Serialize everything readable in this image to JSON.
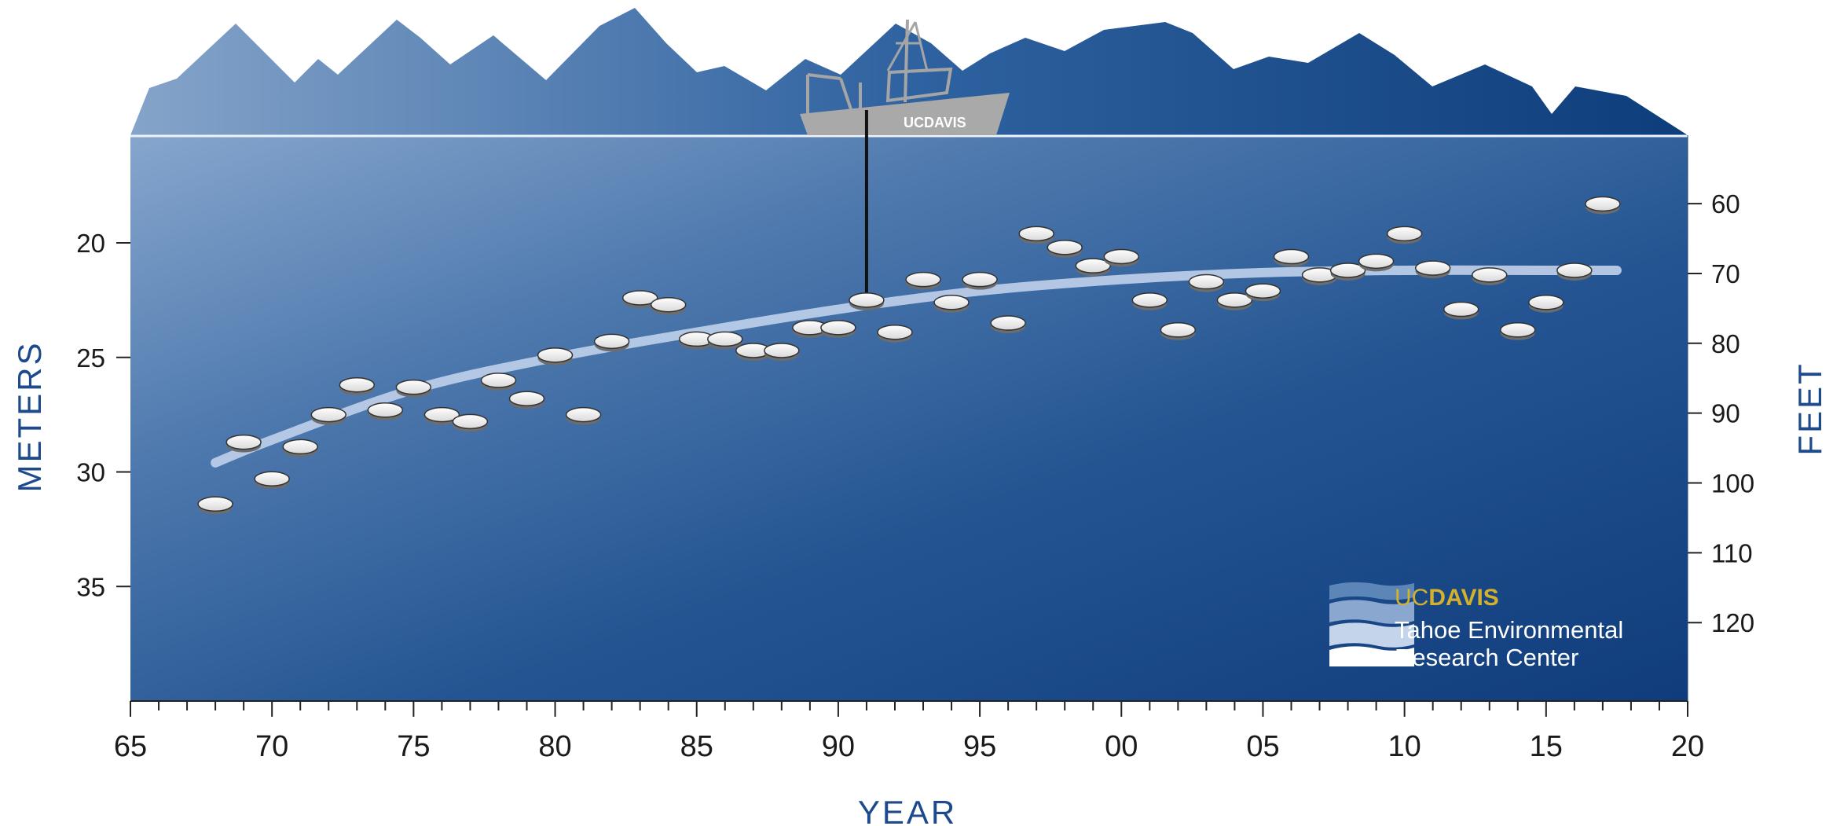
{
  "chart_data": {
    "type": "scatter",
    "title": "",
    "xlabel": "YEAR",
    "ylabel_left": "METERS",
    "ylabel_right": "FEET",
    "x_range": [
      1965,
      2020
    ],
    "x_ticks": [
      {
        "value": 1965,
        "label": "65"
      },
      {
        "value": 1970,
        "label": "70"
      },
      {
        "value": 1975,
        "label": "75"
      },
      {
        "value": 1980,
        "label": "80"
      },
      {
        "value": 1985,
        "label": "85"
      },
      {
        "value": 1990,
        "label": "90"
      },
      {
        "value": 1995,
        "label": "95"
      },
      {
        "value": 2000,
        "label": "00"
      },
      {
        "value": 2005,
        "label": "05"
      },
      {
        "value": 2010,
        "label": "10"
      },
      {
        "value": 2015,
        "label": "15"
      },
      {
        "value": 2020,
        "label": "20"
      }
    ],
    "y_meters_range": [
      15.3,
      40.0
    ],
    "y_meters_inverted": true,
    "y_meters_ticks": [
      20,
      25,
      30,
      35
    ],
    "y_feet_ticks": [
      60,
      70,
      80,
      90,
      100,
      110,
      120
    ],
    "series": [
      {
        "x": [
          1968,
          1969,
          1970,
          1971,
          1972,
          1973,
          1974,
          1975,
          1976,
          1977,
          1978,
          1979,
          1980,
          1981,
          1982,
          1983,
          1984,
          1985,
          1986,
          1987,
          1988,
          1989,
          1990,
          1991,
          1992,
          1993,
          1994,
          1995,
          1996,
          1997,
          1998,
          1999,
          2000,
          2001,
          2002,
          2003,
          2004,
          2005,
          2006,
          2007,
          2008,
          2009,
          2010,
          2011,
          2012,
          2013,
          2014,
          2015,
          2016,
          2017
        ],
        "y": [
          31.4,
          28.7,
          30.3,
          28.9,
          27.5,
          26.2,
          27.3,
          26.3,
          27.5,
          27.8,
          26.0,
          26.8,
          24.9,
          27.5,
          24.3,
          22.4,
          22.7,
          24.2,
          24.2,
          24.7,
          24.7,
          23.7,
          23.7,
          22.5,
          23.9,
          21.6,
          22.6,
          21.6,
          23.5,
          19.6,
          20.2,
          21.0,
          20.6,
          22.5,
          23.8,
          21.7,
          22.5,
          22.1,
          20.6,
          21.4,
          21.2,
          20.8,
          19.6,
          21.1,
          22.9,
          21.4,
          23.8,
          22.6,
          21.2,
          18.3
        ]
      }
    ],
    "trend_line": {
      "x": [
        1968,
        1970,
        1975,
        1980,
        1985,
        1990,
        1995,
        2000,
        2005,
        2010,
        2015,
        2017.5
      ],
      "y": [
        29.6,
        28.6,
        26.4,
        25.0,
        23.9,
        22.9,
        22.1,
        21.6,
        21.3,
        21.2,
        21.2,
        21.2
      ]
    },
    "colors": {
      "water_top": "#7b9ec9",
      "water_bottom": "#15407f",
      "mountains_left": "#7d9fc6",
      "mountains_right": "#0f3f7c",
      "trend_line": "#b9cce8",
      "axis_title": "#1c4a8c",
      "boat": "#aaaaaa",
      "logo_gold": "#d4b12a"
    }
  },
  "boat": {
    "label_uc": "UC",
    "label_davis": "DAVIS",
    "measurement_year": 1991,
    "measurement_depth": 22.5
  },
  "logo": {
    "uc": "UC",
    "davis": "DAVIS",
    "line1": "Tahoe Environmental",
    "line2": "Research Center"
  }
}
